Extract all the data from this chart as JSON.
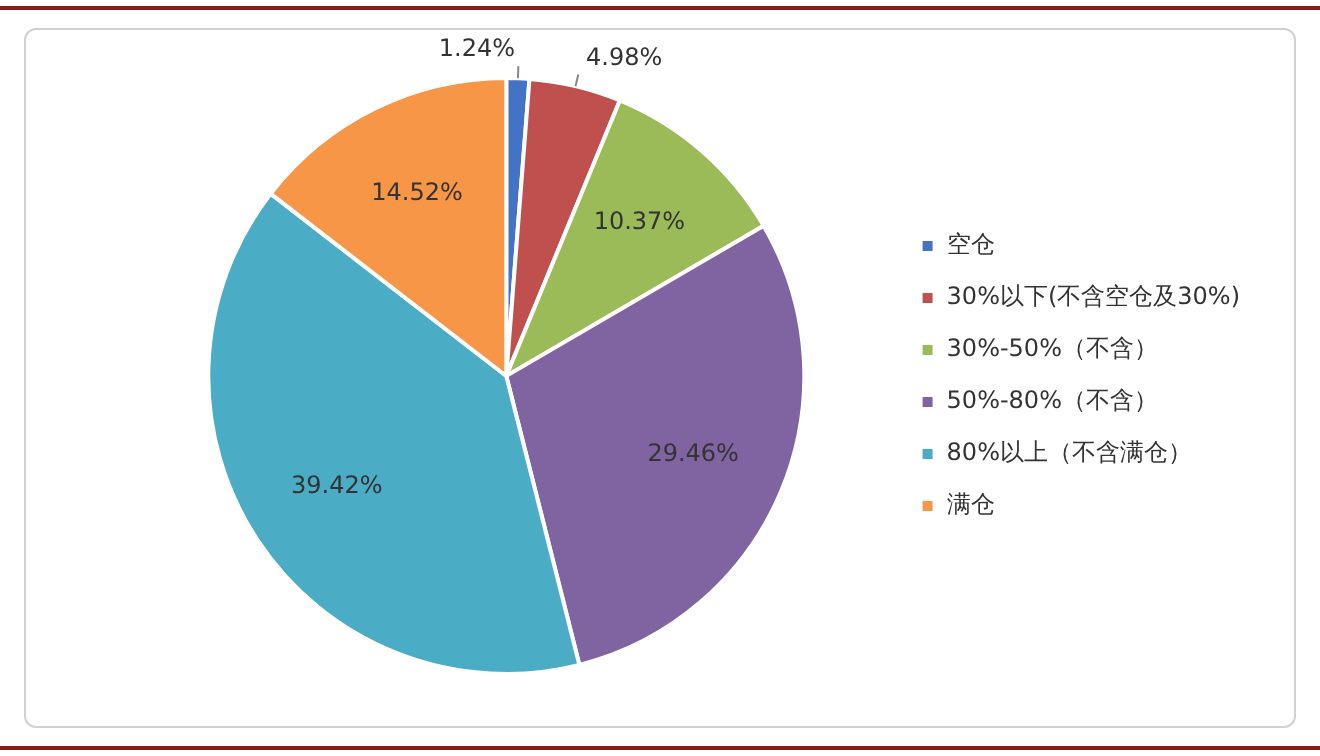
{
  "chart_data": {
    "type": "pie",
    "categories": [
      "空仓",
      "30%以下(不含空仓及30%)",
      "30%-50%（不含）",
      "50%-80%（不含）",
      "80%以上（不含满仓）",
      "满仓"
    ],
    "values": [
      1.24,
      4.98,
      10.37,
      29.46,
      39.42,
      14.52
    ],
    "colors": [
      "#4472c4",
      "#c0504d",
      "#9bbb59",
      "#8064a2",
      "#4bacc6",
      "#f79646"
    ],
    "value_labels": [
      "1.24%",
      "4.98%",
      "10.37%",
      "29.46%",
      "39.42%",
      "14.52%"
    ],
    "legend": "right"
  }
}
